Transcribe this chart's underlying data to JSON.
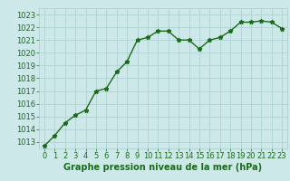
{
  "x": [
    0,
    1,
    2,
    3,
    4,
    5,
    6,
    7,
    8,
    9,
    10,
    11,
    12,
    13,
    14,
    15,
    16,
    17,
    18,
    19,
    20,
    21,
    22,
    23
  ],
  "y": [
    1012.7,
    1013.5,
    1014.5,
    1015.1,
    1015.5,
    1017.0,
    1017.2,
    1018.5,
    1019.3,
    1021.0,
    1021.2,
    1021.7,
    1021.7,
    1021.0,
    1021.0,
    1020.3,
    1021.0,
    1021.2,
    1021.7,
    1022.4,
    1022.4,
    1022.5,
    1022.4,
    1021.9
  ],
  "line_color": "#1a6b1a",
  "marker": "*",
  "bg_color": "#cce8e8",
  "grid_color": "#aacece",
  "xlabel": "Graphe pression niveau de la mer (hPa)",
  "ylim_min": 1012.5,
  "ylim_max": 1023.5,
  "xlim_min": -0.5,
  "xlim_max": 23.5,
  "yticks": [
    1013,
    1014,
    1015,
    1016,
    1017,
    1018,
    1019,
    1020,
    1021,
    1022,
    1023
  ],
  "xticks": [
    0,
    1,
    2,
    3,
    4,
    5,
    6,
    7,
    8,
    9,
    10,
    11,
    12,
    13,
    14,
    15,
    16,
    17,
    18,
    19,
    20,
    21,
    22,
    23
  ],
  "tick_color": "#1a6b1a",
  "label_fontsize": 6,
  "xlabel_fontsize": 7,
  "line_width": 1.0,
  "marker_size": 3.5
}
